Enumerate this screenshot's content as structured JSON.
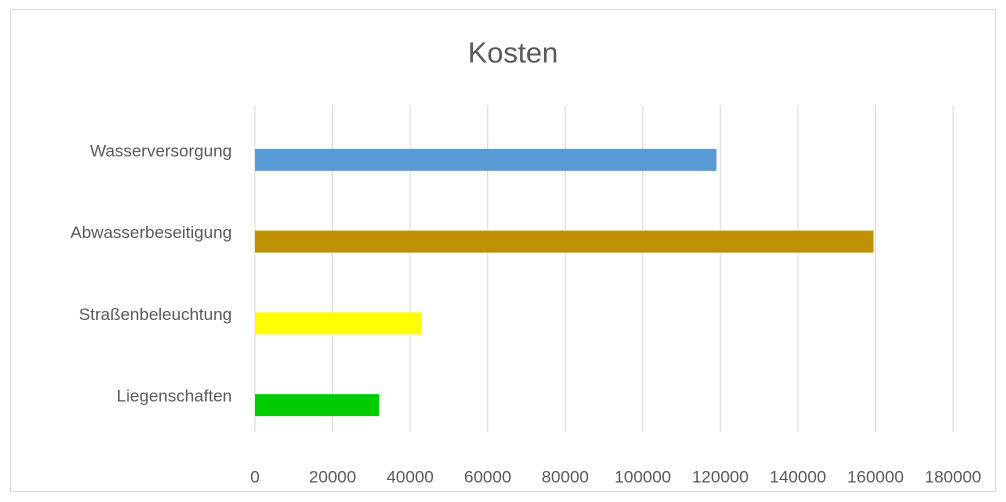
{
  "chart_data": {
    "type": "bar",
    "orientation": "horizontal",
    "title": "Kosten",
    "categories": [
      "Wasserversorgung",
      "Abwasserbeseitigung",
      "Straßenbeleuchtung",
      "Liegenschaften"
    ],
    "values": [
      119000,
      159500,
      43000,
      32000
    ],
    "colors": [
      "#5b9bd5",
      "#bf9000",
      "#ffff00",
      "#00cc00"
    ],
    "xlim": [
      0,
      180000
    ],
    "xticks": [
      0,
      20000,
      40000,
      60000,
      80000,
      100000,
      120000,
      140000,
      160000,
      180000
    ],
    "grid": true
  }
}
